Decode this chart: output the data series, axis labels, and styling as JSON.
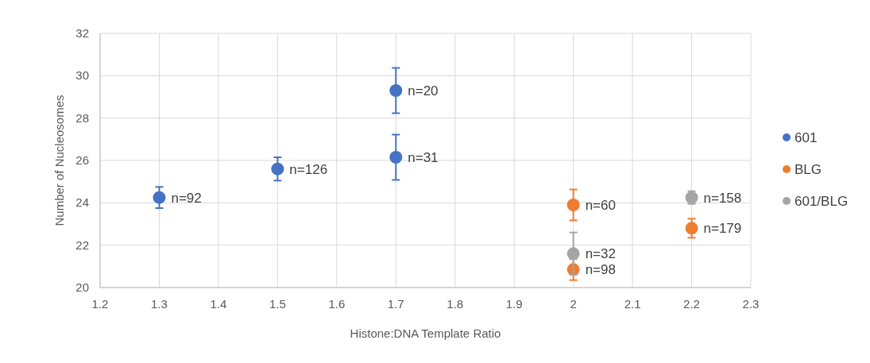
{
  "chart_data": {
    "type": "scatter",
    "xlabel": "Histone:DNA Template Ratio",
    "ylabel": "Number of Nucleosomes",
    "xlim": [
      1.2,
      2.3
    ],
    "xticks": [
      1.2,
      1.3,
      1.4,
      1.5,
      1.6,
      1.7,
      1.8,
      1.9,
      {
        "value": 2,
        "label": "2"
      },
      2.1,
      2.2,
      2.3
    ],
    "ylim": [
      20,
      32
    ],
    "yticks": [
      20,
      22,
      24,
      26,
      28,
      30,
      32
    ],
    "grid": true,
    "legend": "right",
    "marker": "circle",
    "series": [
      {
        "name": "601",
        "color": "#4472c4",
        "x": [
          1.3,
          1.5,
          1.7,
          1.7
        ],
        "values": [
          24.25,
          25.6,
          29.3,
          26.15
        ],
        "errors": [
          0.5,
          0.55,
          1.07,
          1.07
        ]
      },
      {
        "name": "BLG",
        "color": "#ed7d31",
        "x": [
          2.0,
          2.0,
          2.2
        ],
        "values": [
          23.9,
          20.85,
          22.8
        ],
        "errors": [
          0.73,
          0.5,
          0.45
        ]
      },
      {
        "name": "601/BLG",
        "color": "#a5a5a5",
        "x": [
          2.0,
          2.2
        ],
        "values": [
          21.6,
          24.25
        ],
        "errors": [
          1.0,
          0.3
        ]
      }
    ],
    "annotations": [
      {
        "text": "n=92",
        "x": 1.3,
        "y": 24.25
      },
      {
        "text": "n=126",
        "x": 1.5,
        "y": 25.6
      },
      {
        "text": "n=20",
        "x": 1.7,
        "y": 29.3
      },
      {
        "text": "n=31",
        "x": 1.7,
        "y": 26.15
      },
      {
        "text": "n=60",
        "x": 2.0,
        "y": 23.9
      },
      {
        "text": "n=98",
        "x": 2.0,
        "y": 20.85
      },
      {
        "text": "n=179",
        "x": 2.2,
        "y": 22.8
      },
      {
        "text": "n=32",
        "x": 2.0,
        "y": 21.6
      },
      {
        "text": "n=158",
        "x": 2.2,
        "y": 24.25
      }
    ]
  }
}
